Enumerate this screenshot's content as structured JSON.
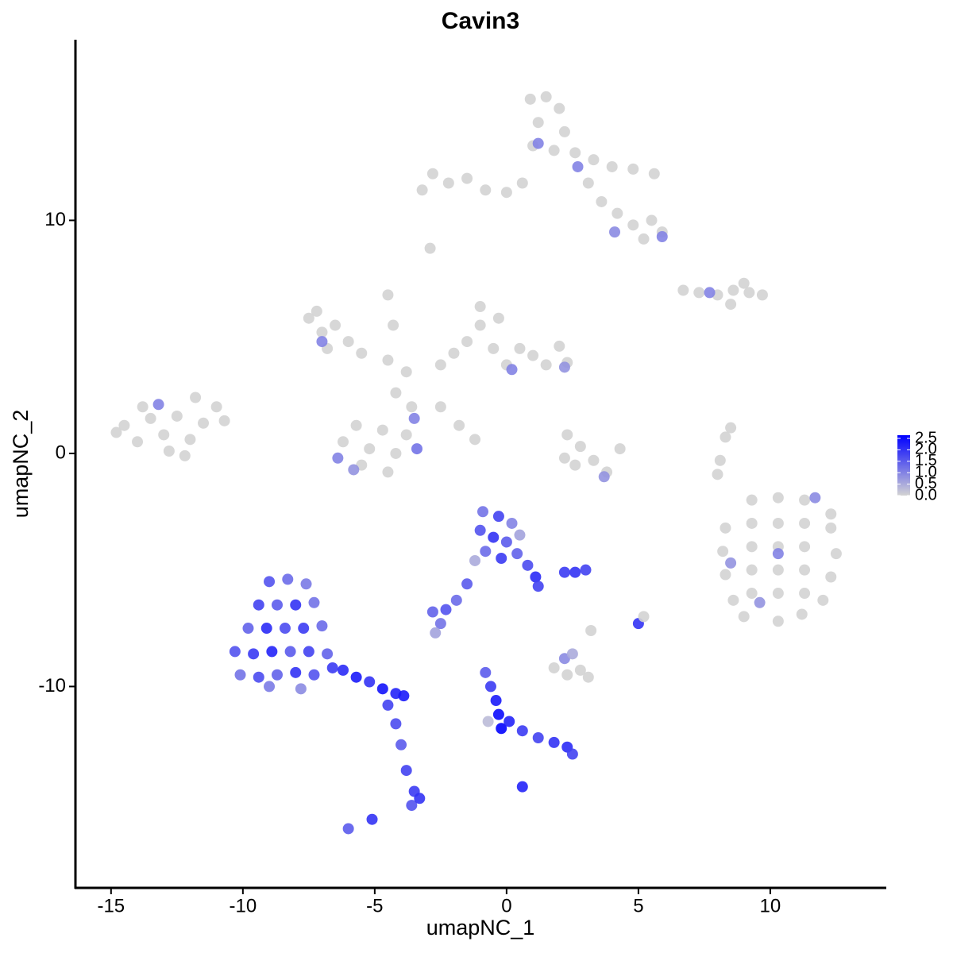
{
  "chart_data": {
    "type": "scatter",
    "title": "Cavin3",
    "x_label": "umapNC_1",
    "y_label": "umapNC_2",
    "xlim": [
      -16.35,
      14.37
    ],
    "ylim": [
      -18.64,
      17.75
    ],
    "xticks": [
      -15,
      -10,
      -5,
      0,
      5,
      10
    ],
    "yticks": [
      -10,
      0,
      10
    ],
    "color_low": "#d3d3d3",
    "color_high": "#0000ff",
    "clim": [
      0,
      2.64
    ],
    "cticks": [
      {
        "value": 0,
        "label": "0.0"
      },
      {
        "value": 0.5,
        "label": "0.5"
      },
      {
        "value": 1,
        "label": "1.0"
      },
      {
        "value": 1.5,
        "label": "1.5"
      },
      {
        "value": 2,
        "label": "2.0"
      },
      {
        "value": 2.5,
        "label": "2.5"
      }
    ],
    "x": [
      -14.5,
      -14,
      -13.5,
      -13,
      -12.5,
      -12,
      -11.5,
      -11,
      -13.8,
      -12.8,
      -11.8,
      -14.8,
      -13.2,
      -12.2,
      -10.7,
      -7.5,
      -7,
      -6.5,
      -6,
      -5.5,
      -7.2,
      -6.8,
      -7,
      -2.5,
      -2,
      -1.5,
      -1,
      -0.5,
      0,
      0.5,
      1,
      1.5,
      2,
      2.3,
      -1,
      -0.3,
      0.2,
      2.2,
      -4.5,
      -3.8,
      -4.2,
      -3.6,
      -4.5,
      -4.3,
      -2.5,
      -1.8,
      -1.2,
      -3.5,
      -6.2,
      -5.7,
      -5.2,
      -4.7,
      -4.2,
      -5.5,
      -4.5,
      -3.8,
      -6.4,
      -5.8,
      -3.4,
      0.9,
      1.5,
      2,
      1.2,
      2.2,
      1.0,
      1.8,
      2.6,
      3.3,
      4,
      4.8,
      5.6,
      3.1,
      3.6,
      4.2,
      4.8,
      5.5,
      5.9,
      5.2,
      -2.8,
      -2.2,
      -1.5,
      -0.8,
      0,
      0.6,
      -3.2,
      -2.9,
      1.2,
      2.7,
      4.1,
      5.9,
      6.7,
      7.3,
      8,
      8.6,
      9.2,
      9.7,
      9,
      8.5,
      7.7,
      2.3,
      2.8,
      3.3,
      2.6,
      3.8,
      4.3,
      2.2,
      3.7,
      8.1,
      8.3,
      8.0,
      8.5,
      9.3,
      10.3,
      11.3,
      12.3,
      8.3,
      9.3,
      10.3,
      11.3,
      12.3,
      8.2,
      9.3,
      10.3,
      11.3,
      12.5,
      8.3,
      9.3,
      10.3,
      11.3,
      12.3,
      8.6,
      9.3,
      10.3,
      11.3,
      12.0,
      9.0,
      10.3,
      11.2,
      10.3,
      11.7,
      8.5,
      9.6,
      1.8,
      2.3,
      2.8,
      3.1,
      2.2,
      2.5,
      3.2,
      5.0,
      5.2,
      -9.0,
      -8.3,
      -7.6,
      -9.4,
      -8.7,
      -8.0,
      -7.3,
      -9.8,
      -9.1,
      -8.4,
      -7.7,
      -7.0,
      -10.3,
      -9.6,
      -8.9,
      -8.2,
      -7.5,
      -6.8,
      -10.1,
      -9.4,
      -8.7,
      -8.0,
      -7.3,
      -6.6,
      -9.0,
      -7.8,
      -6.2,
      -5.7,
      -5.2,
      -4.7,
      -4.2,
      -3.9,
      -4.5,
      -4.2,
      -4.0,
      -3.8,
      -3.5,
      -3.6,
      -3.3,
      -5.1,
      -6.0,
      -0.9,
      -0.3,
      0.2,
      -1.0,
      -0.5,
      0.0,
      0.5,
      -0.8,
      -0.2,
      0.4,
      0.8,
      1.1,
      1.2,
      -1.2,
      -1.5,
      -1.9,
      -2.3,
      -2.8,
      -2.5,
      -2.7,
      2.6,
      3.0,
      2.2,
      -0.8,
      -0.6,
      -0.4,
      -0.3,
      -0.2,
      0.1,
      0.6,
      1.2,
      1.8,
      2.3,
      2.5,
      0.6,
      -0.7
    ],
    "y": [
      1.2,
      0.5,
      1.5,
      0.8,
      1.6,
      0.6,
      1.3,
      2.0,
      2.0,
      0.1,
      2.4,
      0.9,
      2.1,
      -0.1,
      1.4,
      5.8,
      5.2,
      5.5,
      4.8,
      4.3,
      6.1,
      4.5,
      4.8,
      3.8,
      4.3,
      4.8,
      5.5,
      4.5,
      3.8,
      4.5,
      4.2,
      3.8,
      4.6,
      3.9,
      6.3,
      5.8,
      3.6,
      3.7,
      4.0,
      3.5,
      2.6,
      2.0,
      6.8,
      5.5,
      2.0,
      1.2,
      0.6,
      1.5,
      0.5,
      1.2,
      0.2,
      1.0,
      0.0,
      -0.5,
      -0.8,
      0.8,
      -0.2,
      -0.7,
      0.2,
      15.2,
      15.3,
      14.8,
      14.2,
      13.8,
      13.2,
      13.0,
      12.9,
      12.6,
      12.3,
      12.2,
      12.0,
      11.6,
      10.8,
      10.3,
      9.8,
      10.0,
      9.5,
      9.2,
      12.0,
      11.6,
      11.8,
      11.3,
      11.2,
      11.6,
      11.3,
      8.8,
      13.3,
      12.3,
      9.5,
      9.3,
      7.0,
      6.9,
      6.8,
      7.0,
      6.9,
      6.8,
      7.3,
      6.4,
      6.9,
      0.8,
      0.3,
      -0.3,
      -0.5,
      -0.8,
      0.2,
      -0.2,
      -1.0,
      -0.3,
      0.7,
      -0.9,
      1.1,
      -2.0,
      -1.9,
      -2.0,
      -2.6,
      -3.2,
      -3.0,
      -3.0,
      -3.0,
      -3.2,
      -4.2,
      -4.0,
      -4.0,
      -4.0,
      -4.3,
      -5.2,
      -5.0,
      -5.0,
      -5.0,
      -5.3,
      -6.3,
      -6.0,
      -6.0,
      -6.0,
      -6.3,
      -7.0,
      -7.2,
      -6.9,
      -4.3,
      -1.9,
      -4.7,
      -6.4,
      -9.2,
      -9.5,
      -9.3,
      -9.6,
      -8.8,
      -8.6,
      -7.6,
      -7.3,
      -7.0,
      -5.5,
      -5.4,
      -5.6,
      -6.5,
      -6.5,
      -6.5,
      -6.4,
      -7.5,
      -7.5,
      -7.5,
      -7.5,
      -7.4,
      -8.5,
      -8.6,
      -8.5,
      -8.5,
      -8.5,
      -8.6,
      -9.5,
      -9.6,
      -9.5,
      -9.4,
      -9.5,
      -9.2,
      -10.0,
      -10.1,
      -9.3,
      -9.6,
      -9.8,
      -10.1,
      -10.3,
      -10.4,
      -10.8,
      -11.6,
      -12.5,
      -13.6,
      -14.5,
      -15.1,
      -14.8,
      -15.7,
      -16.1,
      -2.5,
      -2.7,
      -3.0,
      -3.3,
      -3.6,
      -3.8,
      -3.5,
      -4.2,
      -4.5,
      -4.3,
      -4.8,
      -5.3,
      -5.7,
      -4.6,
      -5.6,
      -6.3,
      -6.7,
      -6.8,
      -7.3,
      -7.7,
      -5.1,
      -5.0,
      -5.1,
      -9.4,
      -10.0,
      -10.6,
      -11.2,
      -11.8,
      -11.5,
      -11.9,
      -12.2,
      -12.4,
      -12.6,
      -12.9,
      -14.3,
      -11.5
    ],
    "values": [
      0,
      0,
      0,
      0,
      0,
      0,
      0,
      0,
      0,
      0,
      0,
      0,
      1.0,
      0,
      0,
      0,
      0,
      0,
      0,
      0,
      0,
      0,
      1.0,
      0,
      0,
      0,
      0,
      0,
      0,
      0,
      0,
      0,
      0,
      0,
      0,
      0,
      1.0,
      0.8,
      0,
      0,
      0,
      0,
      0,
      0,
      0,
      0,
      0,
      1.0,
      0,
      0,
      0,
      0,
      0,
      0,
      0,
      0,
      1.0,
      0.8,
      1.2,
      0,
      0,
      0,
      0,
      0,
      0,
      0,
      0,
      0,
      0,
      0,
      0,
      0,
      0,
      0,
      0,
      0,
      0,
      0,
      0,
      0,
      0,
      0,
      0,
      0,
      0,
      0,
      1.0,
      1.0,
      0.9,
      1.0,
      0,
      0,
      0,
      0,
      0,
      0,
      0,
      0,
      1.0,
      0,
      0,
      0,
      0,
      0,
      0,
      0,
      0.8,
      0,
      0,
      0,
      0,
      0,
      0,
      0,
      0,
      0,
      0,
      0,
      0,
      0,
      0,
      0,
      0,
      0,
      0,
      0,
      0,
      0,
      0,
      0,
      0,
      0,
      0,
      0,
      0,
      0,
      0,
      0,
      1.0,
      0.9,
      0.8,
      0.8,
      0,
      0,
      0,
      0,
      0.9,
      0.5,
      0,
      2.0,
      0,
      1.6,
      1.3,
      1.1,
      1.8,
      1.5,
      2.0,
      1.2,
      1.4,
      2.1,
      1.7,
      1.9,
      1.3,
      1.6,
      1.9,
      2.2,
      1.5,
      1.8,
      1.4,
      1.2,
      1.7,
      1.4,
      2.0,
      1.6,
      1.9,
      1.1,
      0.9,
      2.1,
      2.3,
      2.0,
      2.4,
      2.2,
      2.3,
      1.8,
      1.7,
      1.5,
      1.8,
      1.9,
      1.6,
      2.0,
      2.0,
      1.5,
      1.2,
      1.8,
      1.0,
      1.6,
      2.0,
      1.5,
      0.6,
      1.3,
      1.9,
      1.4,
      1.7,
      2.1,
      1.8,
      0.5,
      1.5,
      1.3,
      1.6,
      1.4,
      1.2,
      0.6,
      2.0,
      1.8,
      1.9,
      1.5,
      1.9,
      2.3,
      2.5,
      2.6,
      2.2,
      1.9,
      1.8,
      2.0,
      2.1,
      1.8,
      2.2,
      0.3
    ]
  }
}
